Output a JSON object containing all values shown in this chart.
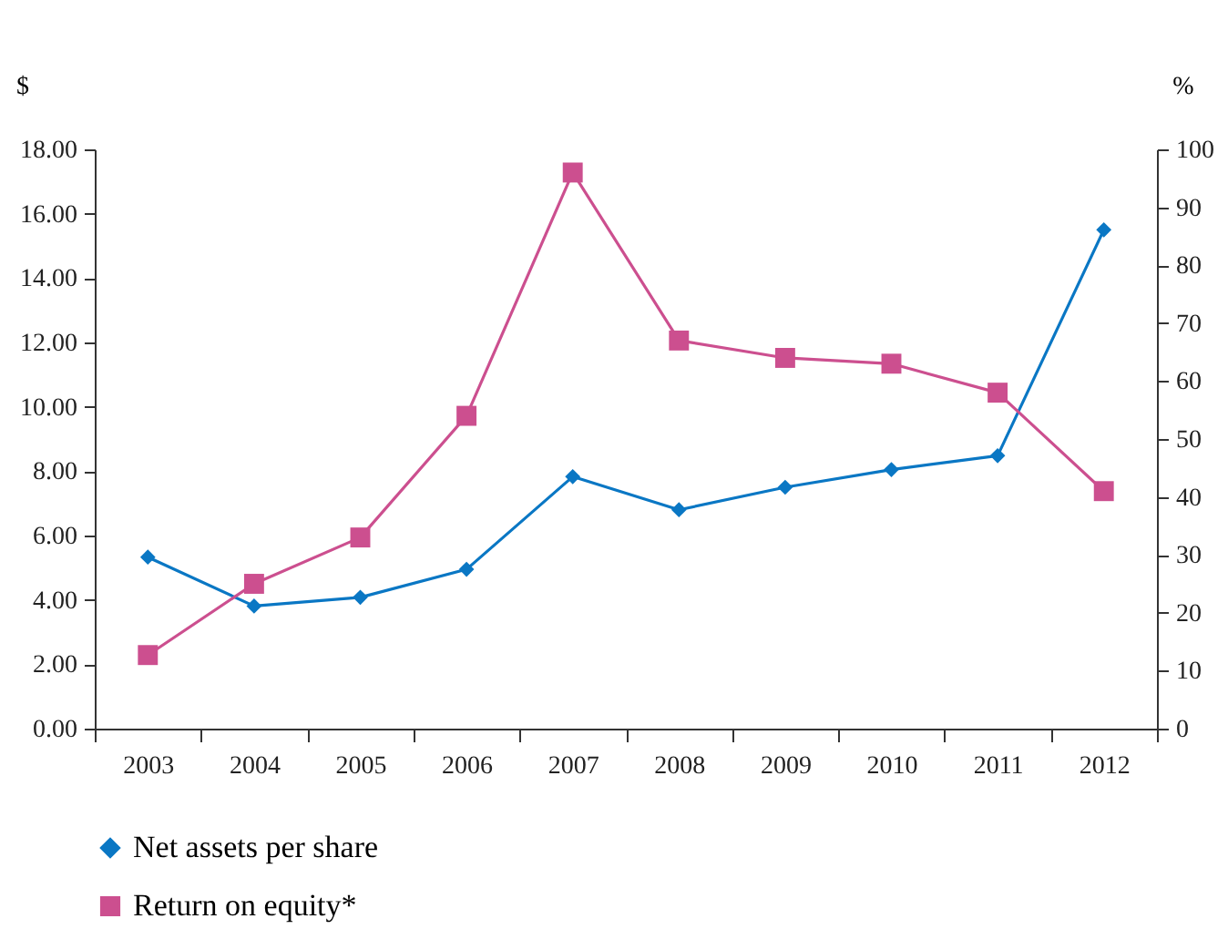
{
  "chart_data": {
    "type": "line",
    "ylabel": "$",
    "y2label": "%",
    "categories": [
      "2003",
      "2004",
      "2005",
      "2006",
      "2007",
      "2008",
      "2009",
      "2010",
      "2011",
      "2012"
    ],
    "series": [
      {
        "name": "Net assets per share",
        "color": "#0a77c4",
        "marker": "diamond",
        "values": [
          5.33,
          3.81,
          4.08,
          4.95,
          7.83,
          6.8,
          7.5,
          8.05,
          8.48,
          15.5
        ]
      },
      {
        "name": "Return on equity*",
        "color": "#cc4f8f",
        "marker": "square",
        "axis": "y2",
        "values": [
          12.7,
          25,
          33,
          54,
          96,
          67,
          64,
          63,
          58,
          41
        ]
      }
    ],
    "ylim": [
      0,
      18
    ],
    "yticks": [
      {
        "value": 0,
        "label": "0.00"
      },
      {
        "value": 2,
        "label": "2.00"
      },
      {
        "value": 4,
        "label": "4.00"
      },
      {
        "value": 6,
        "label": "6.00"
      },
      {
        "value": 8,
        "label": "8.00"
      },
      {
        "value": 10,
        "label": "10.00"
      },
      {
        "value": 12,
        "label": "12.00"
      },
      {
        "value": 14,
        "label": "14.00"
      },
      {
        "value": 16,
        "label": "16.00"
      },
      {
        "value": 18,
        "label": "18.00"
      }
    ],
    "y2lim": [
      0,
      100
    ],
    "y2ticks": [
      0,
      10,
      20,
      30,
      40,
      50,
      60,
      70,
      80,
      90,
      100
    ],
    "grid": false,
    "legend": "bottom"
  }
}
